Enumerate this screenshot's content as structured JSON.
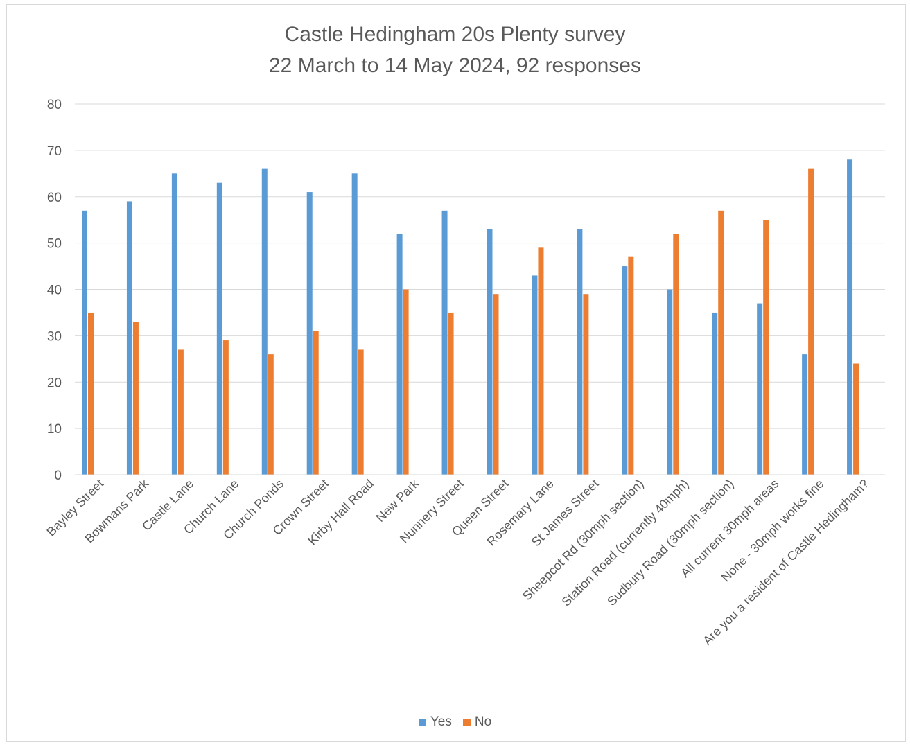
{
  "chart_data": {
    "type": "bar",
    "title": "Castle Hedingham 20s Plenty survey",
    "subtitle": "22 March to 14 May 2024, 92 responses",
    "xlabel": "",
    "ylabel": "",
    "ylim": [
      0,
      80
    ],
    "yticks": [
      0,
      10,
      20,
      30,
      40,
      50,
      60,
      70,
      80
    ],
    "grid": true,
    "legend_position": "bottom",
    "categories": [
      "Bayley Street",
      "Bowmans Park",
      "Castle Lane",
      "Church Lane",
      "Church Ponds",
      "Crown Street",
      "Kirby Hall Road",
      "New Park",
      "Nunnery Street",
      "Queen Street",
      "Rosemary Lane",
      "St James Street",
      "Sheepcot Rd (30mph section)",
      "Station Road (currently 40mph)",
      "Sudbury Road (30mph section)",
      "All current 30mph areas",
      "None - 30mph works fine",
      "Are you a resident of Castle Hedingham?"
    ],
    "series": [
      {
        "name": "Yes",
        "color": "#5b9bd5",
        "values": [
          57,
          59,
          65,
          63,
          66,
          61,
          65,
          52,
          57,
          53,
          43,
          53,
          45,
          40,
          35,
          37,
          26,
          68
        ]
      },
      {
        "name": "No",
        "color": "#ed7d31",
        "values": [
          35,
          33,
          27,
          29,
          26,
          31,
          27,
          40,
          35,
          39,
          49,
          39,
          47,
          52,
          57,
          55,
          66,
          24
        ]
      }
    ]
  }
}
